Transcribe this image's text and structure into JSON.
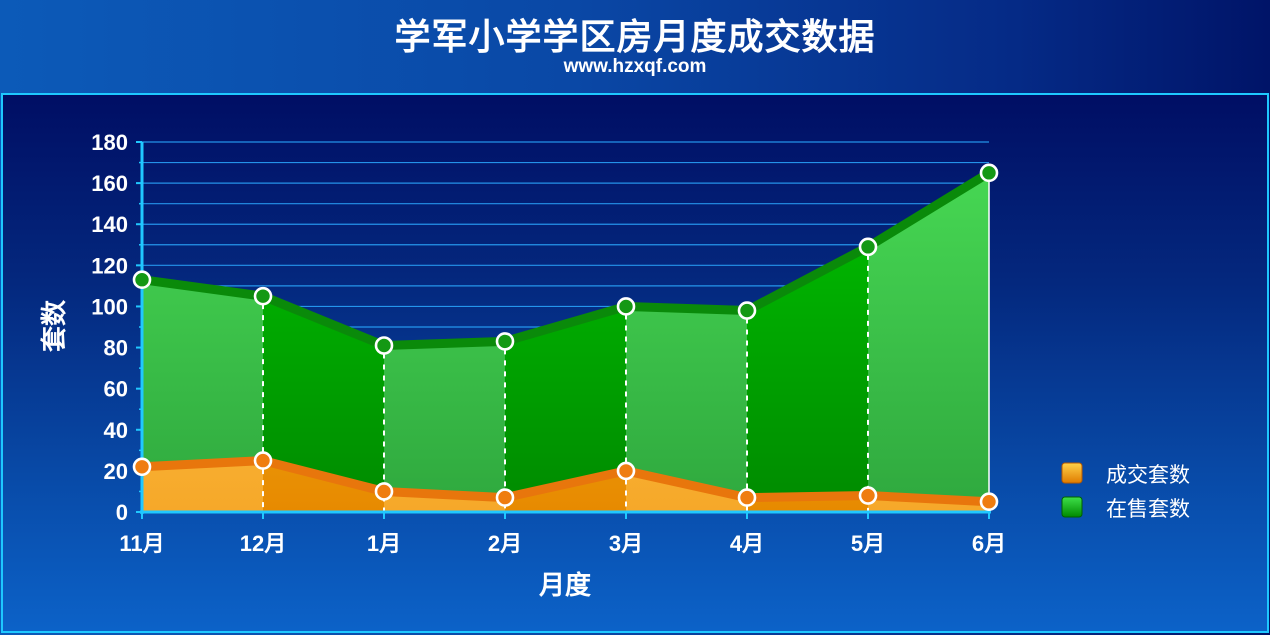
{
  "header": {
    "title": "学军小学学区房月度成交数据",
    "subtitle": "www.hzxqf.com"
  },
  "chart_data": {
    "type": "area",
    "x": [
      "11月",
      "12月",
      "1月",
      "2月",
      "3月",
      "4月",
      "5月",
      "6月"
    ],
    "series": [
      {
        "name": "成交套数",
        "values": [
          22,
          25,
          10,
          7,
          20,
          7,
          8,
          5
        ],
        "color": "#f08a00"
      },
      {
        "name": "在售套数",
        "values": [
          113,
          105,
          81,
          83,
          100,
          98,
          129,
          165
        ],
        "color": "#00a000"
      }
    ],
    "xlabel": "月度",
    "ylabel": "套数",
    "ylim": [
      0,
      180
    ],
    "yticks": [
      0,
      20,
      40,
      60,
      80,
      100,
      120,
      140,
      160,
      180
    ],
    "grid": true,
    "legend_position": "right"
  }
}
